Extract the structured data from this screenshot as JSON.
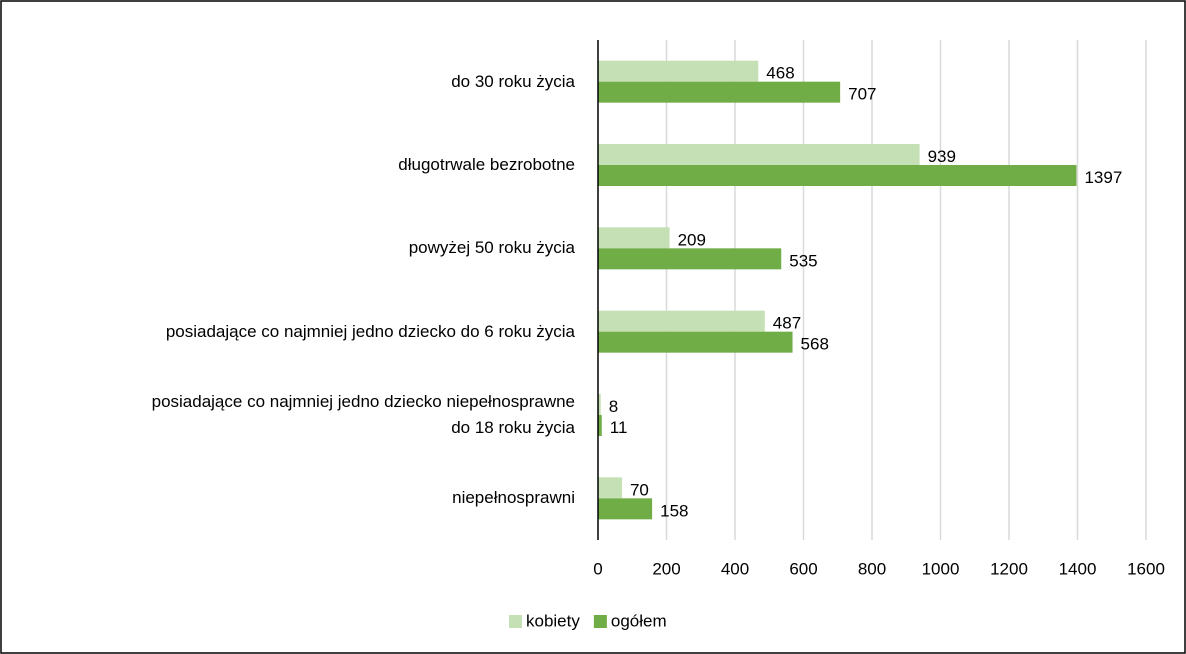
{
  "chart_data": {
    "type": "barh",
    "categories": [
      "do 30 roku życia",
      "długotrwale bezrobotne",
      "powyżej 50 roku życia",
      "posiadające co najmniej jedno dziecko do 6 roku życia",
      "posiadające co najmniej jedno dziecko niepełnosprawne\ndo 18 roku życia",
      "niepełnosprawni"
    ],
    "series": [
      {
        "name": "kobiety",
        "color": "#c5e0b4",
        "values": [
          468,
          939,
          209,
          487,
          8,
          70
        ]
      },
      {
        "name": "ogółem",
        "color": "#70ad47",
        "values": [
          707,
          1397,
          535,
          568,
          11,
          158
        ]
      }
    ],
    "xlim": [
      0,
      1600
    ],
    "xticks": [
      0,
      200,
      400,
      600,
      800,
      1000,
      1200,
      1400,
      1600
    ],
    "grid": true,
    "legend": "bottom"
  }
}
